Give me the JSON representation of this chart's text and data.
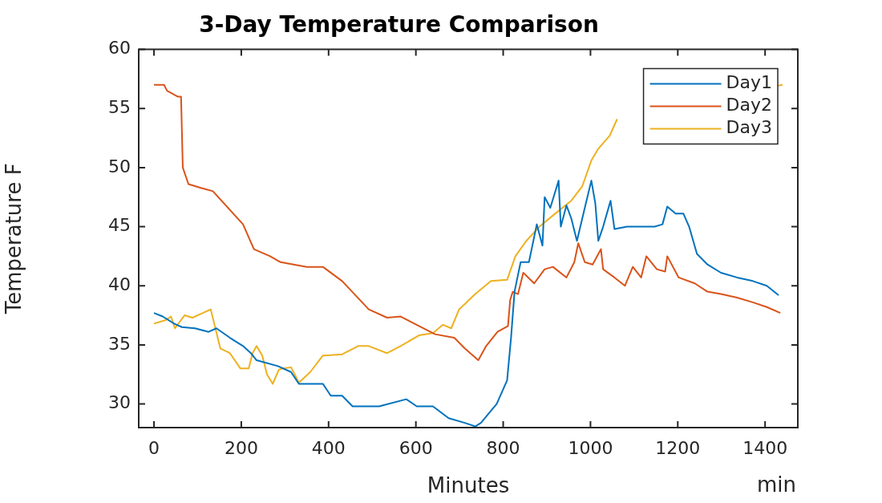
{
  "chart_data": {
    "type": "line",
    "title": "3-Day Temperature Comparison",
    "xlabel": "Minutes",
    "ylabel": "Temperature F",
    "annotations": [
      "min"
    ],
    "xlim": [
      -35,
      1475
    ],
    "xticks": [
      0,
      200,
      400,
      600,
      800,
      1000,
      1200,
      1400
    ],
    "ylim": [
      28,
      60
    ],
    "yticks": [
      30,
      35,
      40,
      45,
      50,
      55,
      60
    ],
    "legend": "top right",
    "marker": "none",
    "line_style": "solid",
    "grid": false,
    "series": [
      {
        "name": "Day1",
        "color": "#0072bd",
        "x": [
          0,
          20,
          46,
          64,
          94,
          125,
          143,
          174,
          204,
          222,
          235,
          284,
          314,
          332,
          387,
          405,
          431,
          455,
          516,
          578,
          602,
          639,
          675,
          712,
          736,
          749,
          785,
          809,
          818,
          826,
          831,
          840,
          859,
          877,
          890,
          895,
          908,
          927,
          932,
          945,
          956,
          969,
          987,
          1002,
          1011,
          1018,
          1029,
          1046,
          1055,
          1084,
          1116,
          1147,
          1165,
          1176,
          1195,
          1213,
          1226,
          1244,
          1268,
          1299,
          1336,
          1372,
          1404,
          1431
        ],
        "values": [
          37.7,
          37.4,
          36.8,
          36.5,
          36.4,
          36.1,
          36.4,
          35.6,
          34.9,
          34.3,
          33.7,
          33.2,
          32.7,
          31.7,
          31.7,
          30.7,
          30.7,
          29.8,
          29.8,
          30.4,
          29.8,
          29.8,
          28.8,
          28.4,
          28.1,
          28.4,
          30.0,
          32.0,
          35.6,
          39.5,
          40.4,
          42.0,
          42.0,
          45.2,
          43.4,
          47.5,
          46.6,
          48.9,
          45.0,
          46.8,
          45.7,
          43.8,
          46.6,
          48.9,
          47.0,
          43.8,
          45.0,
          47.2,
          44.8,
          45.0,
          45.0,
          45.0,
          45.2,
          46.7,
          46.1,
          46.1,
          45.0,
          42.7,
          41.8,
          41.1,
          40.7,
          40.4,
          40.0,
          39.2
        ]
      },
      {
        "name": "Day2",
        "color": "#d95319",
        "x": [
          0,
          23,
          30,
          55,
          62,
          66,
          79,
          106,
          135,
          204,
          229,
          266,
          290,
          350,
          387,
          431,
          492,
          534,
          565,
          607,
          644,
          688,
          712,
          743,
          761,
          787,
          811,
          816,
          822,
          834,
          846,
          871,
          895,
          914,
          945,
          963,
          972,
          987,
          1005,
          1024,
          1029,
          1055,
          1079,
          1097,
          1116,
          1128,
          1152,
          1171,
          1176,
          1202,
          1239,
          1268,
          1299,
          1336,
          1372,
          1404,
          1435
        ],
        "values": [
          57.0,
          57.0,
          56.5,
          56.0,
          56.0,
          50.0,
          48.6,
          48.3,
          48.0,
          45.2,
          43.1,
          42.5,
          42.0,
          41.6,
          41.6,
          40.4,
          38.0,
          37.3,
          37.4,
          36.6,
          35.9,
          35.6,
          34.7,
          33.7,
          34.9,
          36.1,
          36.6,
          38.8,
          39.5,
          39.3,
          41.1,
          40.2,
          41.4,
          41.6,
          40.7,
          42.0,
          43.6,
          42.0,
          41.8,
          43.1,
          41.4,
          40.7,
          40.0,
          41.6,
          40.7,
          42.5,
          41.4,
          41.2,
          42.5,
          40.7,
          40.2,
          39.5,
          39.3,
          39.0,
          38.6,
          38.2,
          37.7
        ]
      },
      {
        "name": "Day3",
        "color": "#edb120",
        "x": [
          0,
          27,
          39,
          48,
          70,
          88,
          112,
          130,
          138,
          152,
          174,
          198,
          217,
          226,
          235,
          248,
          259,
          272,
          286,
          295,
          314,
          332,
          358,
          387,
          431,
          468,
          492,
          534,
          565,
          607,
          639,
          662,
          681,
          699,
          736,
          772,
          809,
          828,
          853,
          883,
          919,
          956,
          981,
          1002,
          1018,
          1044,
          1061,
          1070,
          1425,
          1440
        ],
        "values": [
          36.8,
          37.1,
          37.4,
          36.4,
          37.5,
          37.3,
          37.7,
          38.0,
          36.8,
          34.7,
          34.3,
          33.0,
          33.0,
          34.3,
          34.9,
          34.1,
          32.5,
          31.7,
          32.9,
          33.0,
          33.1,
          31.8,
          32.7,
          34.1,
          34.2,
          34.9,
          34.9,
          34.3,
          34.9,
          35.8,
          36.0,
          36.7,
          36.4,
          38.0,
          39.3,
          40.4,
          40.5,
          42.5,
          43.8,
          45.0,
          46.1,
          47.2,
          48.4,
          50.6,
          51.6,
          52.7,
          54.1,
          null,
          56.9,
          57.0
        ]
      }
    ]
  }
}
